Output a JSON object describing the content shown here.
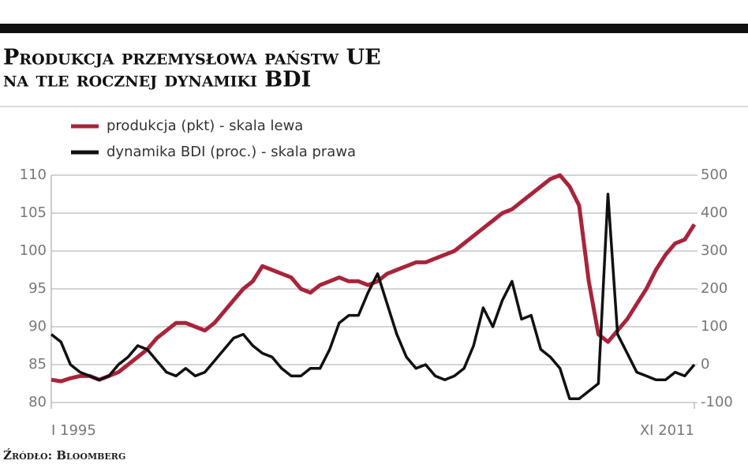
{
  "chart_data": {
    "type": "line",
    "title": [
      "Produkcja przemysłowa państw UE",
      "na tle rocznej dynamiki BDI"
    ],
    "source": "Źródło: Bloomberg",
    "categories": [
      "I 1995",
      null,
      null,
      null,
      null,
      null,
      null,
      null,
      null,
      null,
      null,
      null,
      null,
      null,
      null,
      null,
      null,
      null,
      null,
      null,
      null,
      null,
      null,
      null,
      null,
      null,
      null,
      null,
      null,
      null,
      null,
      null,
      null,
      null,
      null,
      null,
      null,
      null,
      null,
      null,
      null,
      null,
      null,
      null,
      null,
      null,
      null,
      null,
      null,
      null,
      null,
      null,
      null,
      null,
      null,
      null,
      null,
      null,
      null,
      null,
      null,
      null,
      null,
      null,
      null,
      null,
      null,
      "XI 2011"
    ],
    "series": [
      {
        "name": "produkcja (pkt) - skala lewa",
        "color": "#a8243a",
        "values": [
          83,
          82.8,
          83.2,
          83.5,
          83.5,
          83,
          83.5,
          84,
          85,
          86,
          87,
          88.5,
          89.5,
          90.5,
          90.5,
          90,
          89.5,
          90.5,
          92,
          93.5,
          95,
          96,
          98,
          97.5,
          97,
          96.5,
          95,
          94.5,
          95.5,
          96,
          96.5,
          96,
          96,
          95.5,
          96,
          97,
          97.5,
          98,
          98.5,
          98.5,
          99,
          99.5,
          100,
          101,
          102,
          103,
          104,
          105,
          105.5,
          106.5,
          107.5,
          108.5,
          109.5,
          110,
          108.5,
          106,
          96,
          89,
          88,
          89.5,
          91,
          93,
          95,
          97.5,
          99.5,
          101,
          101.5,
          103.5
        ]
      },
      {
        "name": "dynamika BDI (proc.) - skala prawa",
        "color": "#111111",
        "axis": "y2",
        "values": [
          80,
          60,
          0,
          -20,
          -30,
          -40,
          -30,
          0,
          20,
          50,
          40,
          10,
          -20,
          -30,
          -10,
          -30,
          -20,
          10,
          40,
          70,
          80,
          50,
          30,
          20,
          -10,
          -30,
          -30,
          -10,
          -10,
          40,
          110,
          130,
          130,
          190,
          240,
          160,
          80,
          20,
          -10,
          0,
          -30,
          -40,
          -30,
          -10,
          50,
          150,
          100,
          170,
          220,
          120,
          130,
          40,
          20,
          -10,
          -90,
          -90,
          -70,
          -50,
          450,
          80,
          30,
          -20,
          -30,
          -40,
          -40,
          -20,
          -30,
          0
        ]
      }
    ],
    "ylim": [
      80,
      110
    ],
    "yticks": [
      80,
      85,
      90,
      95,
      100,
      105,
      110
    ],
    "y2lim": [
      -100,
      500
    ],
    "y2ticks": [
      -100,
      0,
      100,
      200,
      300,
      400,
      500
    ],
    "grid": true
  }
}
